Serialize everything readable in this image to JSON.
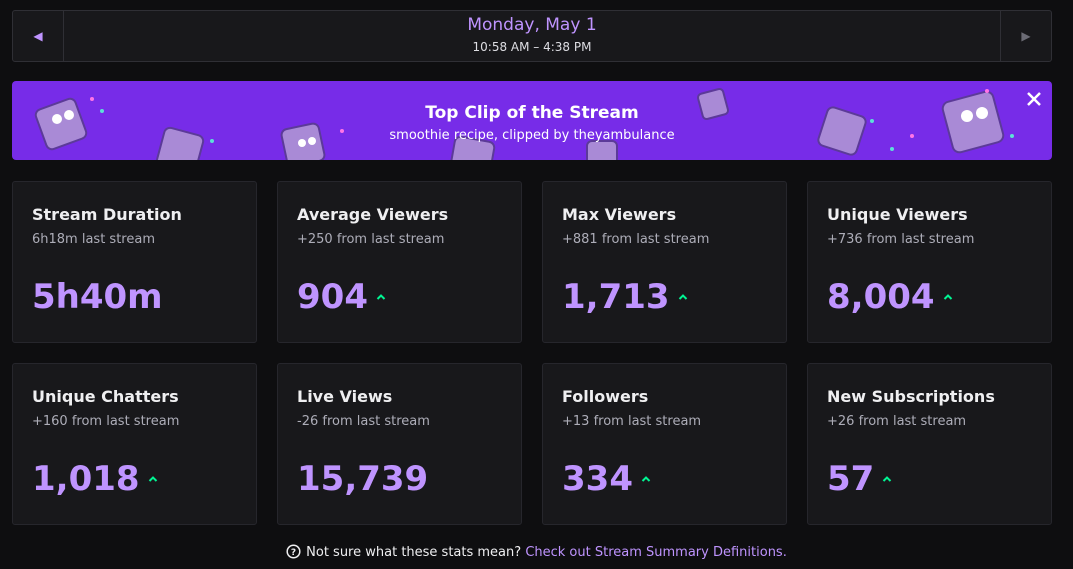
{
  "header": {
    "title": "Monday, May 1",
    "subtitle": "10:58 AM – 4:38 PM"
  },
  "banner": {
    "title": "Top Clip of the Stream",
    "subtitle": "smoothie recipe, clipped by theyambulance"
  },
  "stats": [
    {
      "title": "Stream Duration",
      "subtitle": "6h18m last stream",
      "value": "5h40m"
    },
    {
      "title": "Average Viewers",
      "subtitle": "+250 from last stream",
      "value": "904",
      "trend": "up"
    },
    {
      "title": "Max Viewers",
      "subtitle": "+881 from last stream",
      "value": "1,713",
      "trend": "up"
    },
    {
      "title": "Unique Viewers",
      "subtitle": "+736 from last stream",
      "value": "8,004",
      "trend": "up"
    },
    {
      "title": "Unique Chatters",
      "subtitle": "+160 from last stream",
      "value": "1,018",
      "trend": "up"
    },
    {
      "title": "Live Views",
      "subtitle": "-26 from last stream",
      "value": "15,739"
    },
    {
      "title": "Followers",
      "subtitle": "+13 from last stream",
      "value": "334",
      "trend": "up"
    },
    {
      "title": "New Subscriptions",
      "subtitle": "+26 from last stream",
      "value": "57",
      "trend": "up"
    }
  ],
  "footer": {
    "text": "Not sure what these stats mean?",
    "link": "Check out Stream Summary Definitions."
  }
}
